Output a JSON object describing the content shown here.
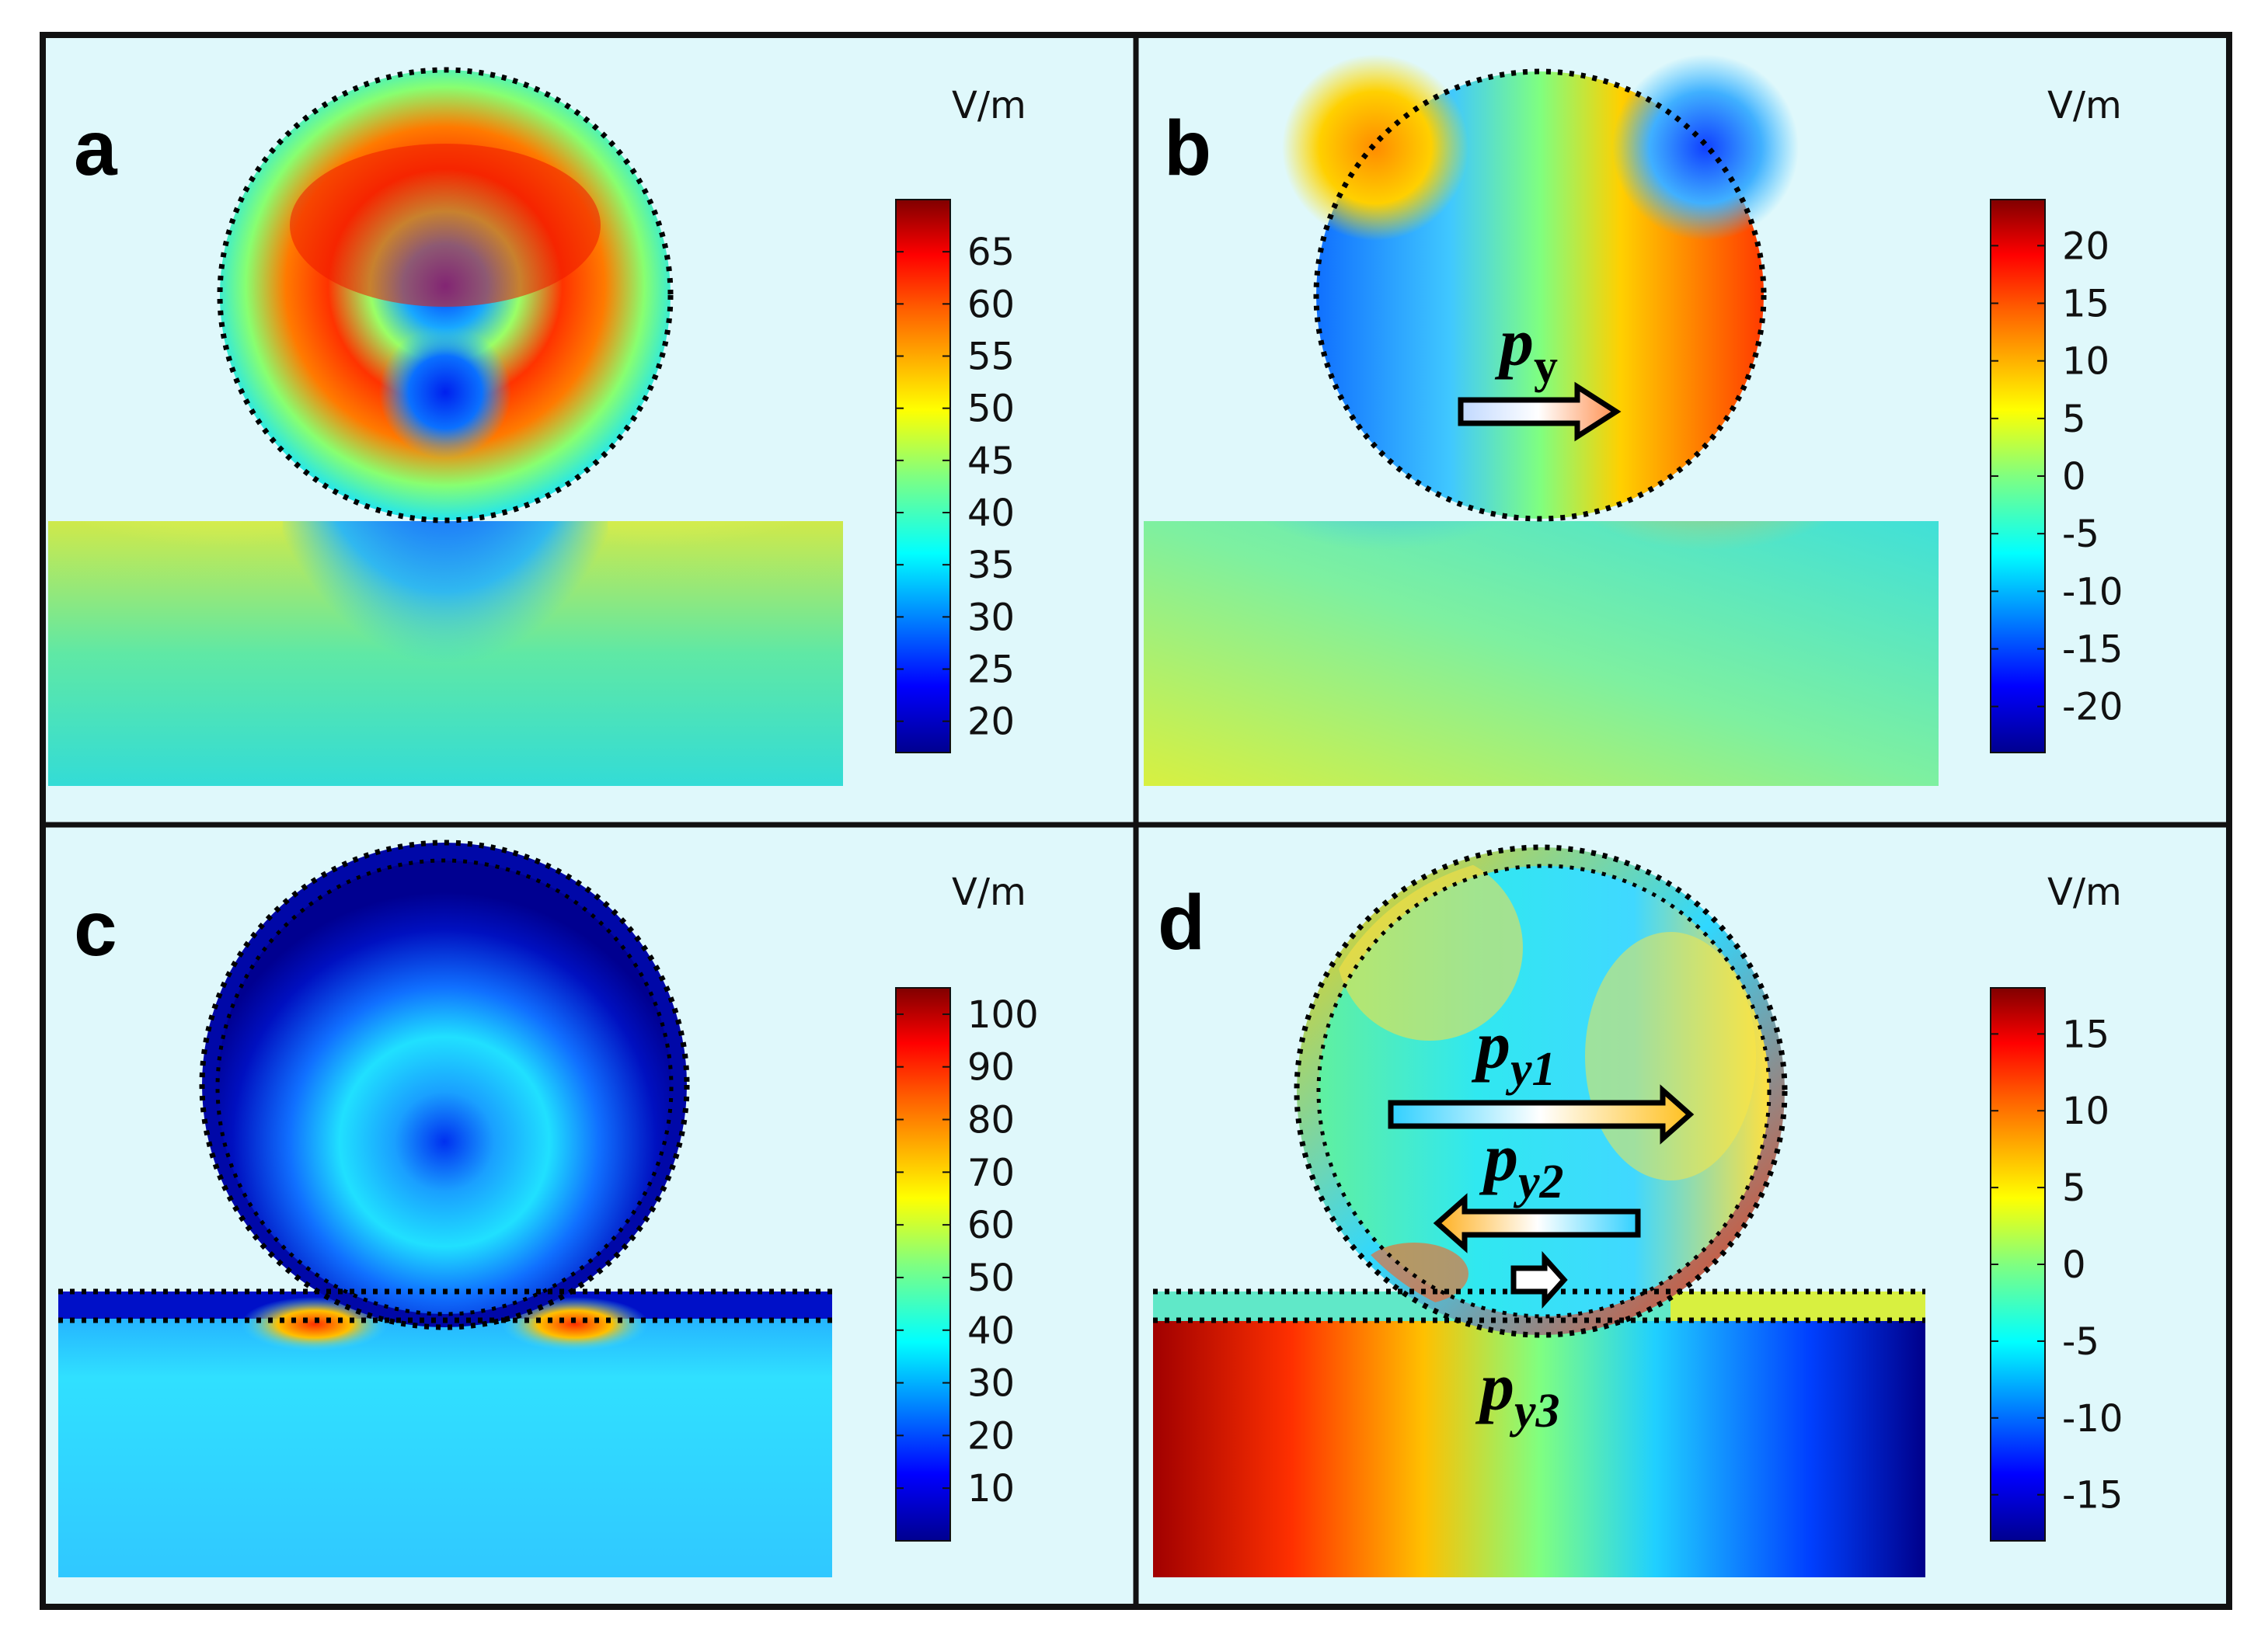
{
  "colors": {
    "background": "#dff8fb",
    "frame": "#111111",
    "colormap": [
      "#00008f",
      "#0000ff",
      "#0080ff",
      "#00ffff",
      "#80ff80",
      "#ffff00",
      "#ff8000",
      "#ff0000",
      "#800000"
    ]
  },
  "chart_data": [
    {
      "type": "heatmap",
      "panel": "a",
      "unit": "V/m",
      "colorbar": {
        "min": 17,
        "max": 70,
        "ticks": [
          65,
          60,
          55,
          50,
          45,
          40,
          35,
          30,
          25,
          20
        ]
      },
      "annotations": []
    },
    {
      "type": "heatmap",
      "panel": "b",
      "unit": "V/m",
      "colorbar": {
        "min": -24,
        "max": 24,
        "ticks": [
          20,
          15,
          10,
          5,
          0,
          -5,
          -10,
          -15,
          -20
        ]
      },
      "annotations": [
        {
          "base": "p",
          "sub": "y"
        }
      ]
    },
    {
      "type": "heatmap",
      "panel": "c",
      "unit": "V/m",
      "colorbar": {
        "min": 0,
        "max": 105,
        "ticks": [
          100,
          90,
          80,
          70,
          60,
          50,
          40,
          30,
          20,
          10
        ]
      },
      "annotations": []
    },
    {
      "type": "heatmap",
      "panel": "d",
      "unit": "V/m",
      "colorbar": {
        "min": -18,
        "max": 18,
        "ticks": [
          15,
          10,
          5,
          0,
          -5,
          -10,
          -15
        ]
      },
      "annotations": [
        {
          "base": "p",
          "sub": "y1"
        },
        {
          "base": "p",
          "sub": "y2"
        },
        {
          "base": "p",
          "sub": "y3"
        }
      ]
    }
  ]
}
